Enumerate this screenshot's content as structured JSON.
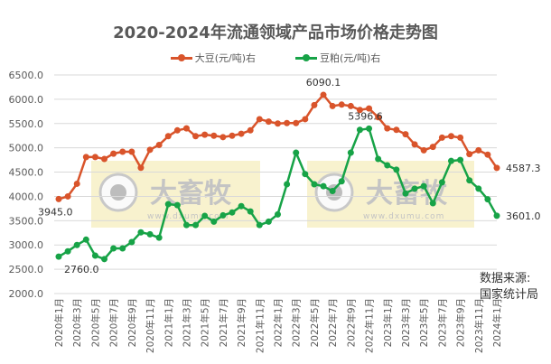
{
  "chart_data": {
    "type": "line",
    "title": "2020-2024年流通领域产品市场价格走势图",
    "xlabel": "",
    "ylabel": "",
    "ylim": [
      2000,
      6500
    ],
    "yticks": [
      2000,
      2500,
      3000,
      3500,
      4000,
      4500,
      5000,
      5500,
      6000,
      6500
    ],
    "ytick_labels": [
      "2000.0",
      "2500.0",
      "3000.0",
      "3500.0",
      "4000.0",
      "4500.0",
      "5000.0",
      "5500.0",
      "6000.0",
      "6500.0"
    ],
    "grid": true,
    "legend_position": "top",
    "x_tick_labels": [
      "2020年1月",
      "2020年3月",
      "2020年5月",
      "2020年7月",
      "2020年9月",
      "2020年11月",
      "2021年1月",
      "2021年3月",
      "2021年5月",
      "2021年7月",
      "2021年9月",
      "2021年11月",
      "2022年1月",
      "2022年3月",
      "2022年5月",
      "2022年7月",
      "2022年9月",
      "2022年11月",
      "2023年1月",
      "2023年3月",
      "2023年5月",
      "2023年7月",
      "2023年9月",
      "2023年11月",
      "2024年1月"
    ],
    "x": [
      "2020-01",
      "2020-02",
      "2020-03",
      "2020-04",
      "2020-05",
      "2020-06",
      "2020-07",
      "2020-08",
      "2020-09",
      "2020-10",
      "2020-11",
      "2020-12",
      "2021-01",
      "2021-02",
      "2021-03",
      "2021-04",
      "2021-05",
      "2021-06",
      "2021-07",
      "2021-08",
      "2021-09",
      "2021-10",
      "2021-11",
      "2021-12",
      "2022-01",
      "2022-02",
      "2022-03",
      "2022-04",
      "2022-05",
      "2022-06",
      "2022-07",
      "2022-08",
      "2022-09",
      "2022-10",
      "2022-11",
      "2022-12",
      "2023-01",
      "2023-02",
      "2023-03",
      "2023-04",
      "2023-05",
      "2023-06",
      "2023-07",
      "2023-08",
      "2023-09",
      "2023-10",
      "2023-11",
      "2023-12",
      "2024-01"
    ],
    "series": [
      {
        "name": "大豆(元/吨)右",
        "color": "#D9542B",
        "values": [
          3945.0,
          4000,
          4260,
          4810,
          4810,
          4770,
          4880,
          4920,
          4920,
          4590,
          4960,
          5060,
          5240,
          5360,
          5400,
          5240,
          5270,
          5250,
          5220,
          5250,
          5290,
          5360,
          5590,
          5540,
          5500,
          5510,
          5510,
          5590,
          5880,
          6090.1,
          5860,
          5890,
          5860,
          5780,
          5810,
          5630,
          5400,
          5370,
          5280,
          5070,
          4950,
          5020,
          5210,
          5240,
          5210,
          4870,
          4950,
          4860,
          4587.3
        ],
        "annotations": [
          {
            "index": 0,
            "label": "3945.0"
          },
          {
            "index": 29,
            "label": "6090.1"
          },
          {
            "index": 48,
            "label": "4587.3"
          }
        ]
      },
      {
        "name": "豆粕(元/吨)右",
        "color": "#17A347",
        "values": [
          2760.0,
          2870,
          3000,
          3110,
          2780,
          2710,
          2930,
          2930,
          3060,
          3260,
          3220,
          3150,
          3840,
          3820,
          3410,
          3410,
          3600,
          3480,
          3610,
          3670,
          3800,
          3690,
          3410,
          3480,
          3630,
          4250,
          4900,
          4460,
          4250,
          4210,
          4110,
          4310,
          4900,
          5370,
          5396.6,
          4770,
          4640,
          4550,
          4060,
          4160,
          4210,
          3860,
          4290,
          4730,
          4750,
          4330,
          4160,
          3940,
          3601.0
        ],
        "annotations": [
          {
            "index": 0,
            "label": "2760.0"
          },
          {
            "index": 34,
            "label": "5396.6"
          },
          {
            "index": 48,
            "label": "3601.0"
          }
        ]
      }
    ]
  },
  "legend": {
    "items": [
      {
        "label": "大豆(元/吨)右",
        "color": "#D9542B"
      },
      {
        "label": "豆粕(元/吨)右",
        "color": "#17A347"
      }
    ]
  },
  "source": {
    "line1": "数据来源:",
    "line2": "国家统计局"
  },
  "watermark": {
    "brand": "大畜牧",
    "url": "www.dxumu.com"
  }
}
